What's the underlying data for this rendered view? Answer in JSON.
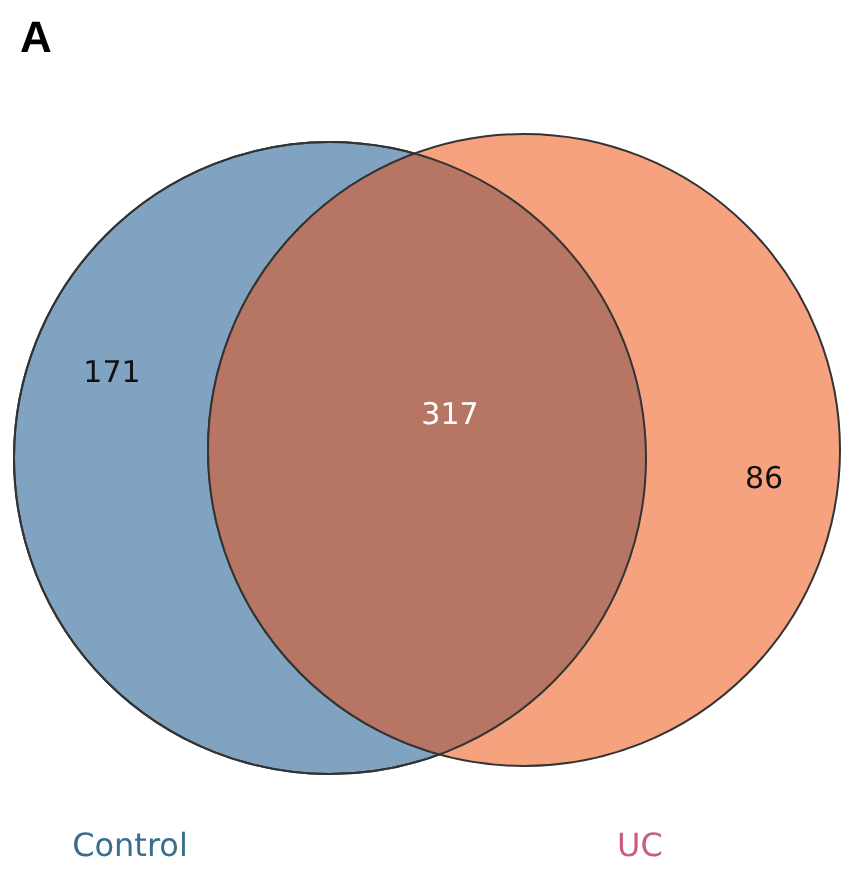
{
  "chart_data": {
    "type": "other",
    "title": "A",
    "categories": [
      "Control",
      "UC"
    ],
    "values": [
      171,
      86
    ],
    "colors": [
      "#7fa3c0",
      "#f6a27f"
    ],
    "annotations": [
      "317"
    ],
    "data_labels": true
  }
}
